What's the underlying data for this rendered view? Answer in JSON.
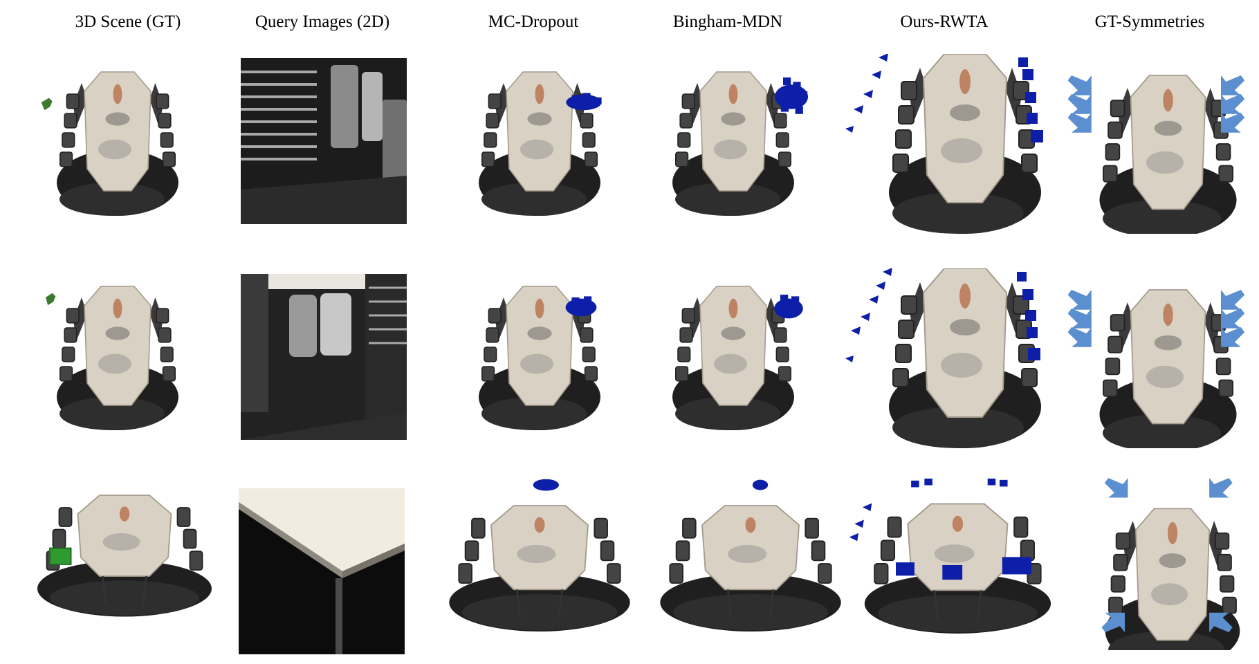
{
  "figure": {
    "columns": [
      {
        "label": "3D Scene (GT)"
      },
      {
        "label": "Query Images (2D)"
      },
      {
        "label": "MC-Dropout"
      },
      {
        "label": "Bingham-MDN"
      },
      {
        "label": "Ours-RWTA"
      },
      {
        "label": "GT-Symmetries"
      }
    ]
  },
  "colors": {
    "gt_pose": "#3d7a2e",
    "prediction": "#0d1fa8",
    "symmetry_arrow": "#5b8fd0",
    "table_top": "#d9d1c4",
    "floor_dark": "#2a2a2a"
  }
}
